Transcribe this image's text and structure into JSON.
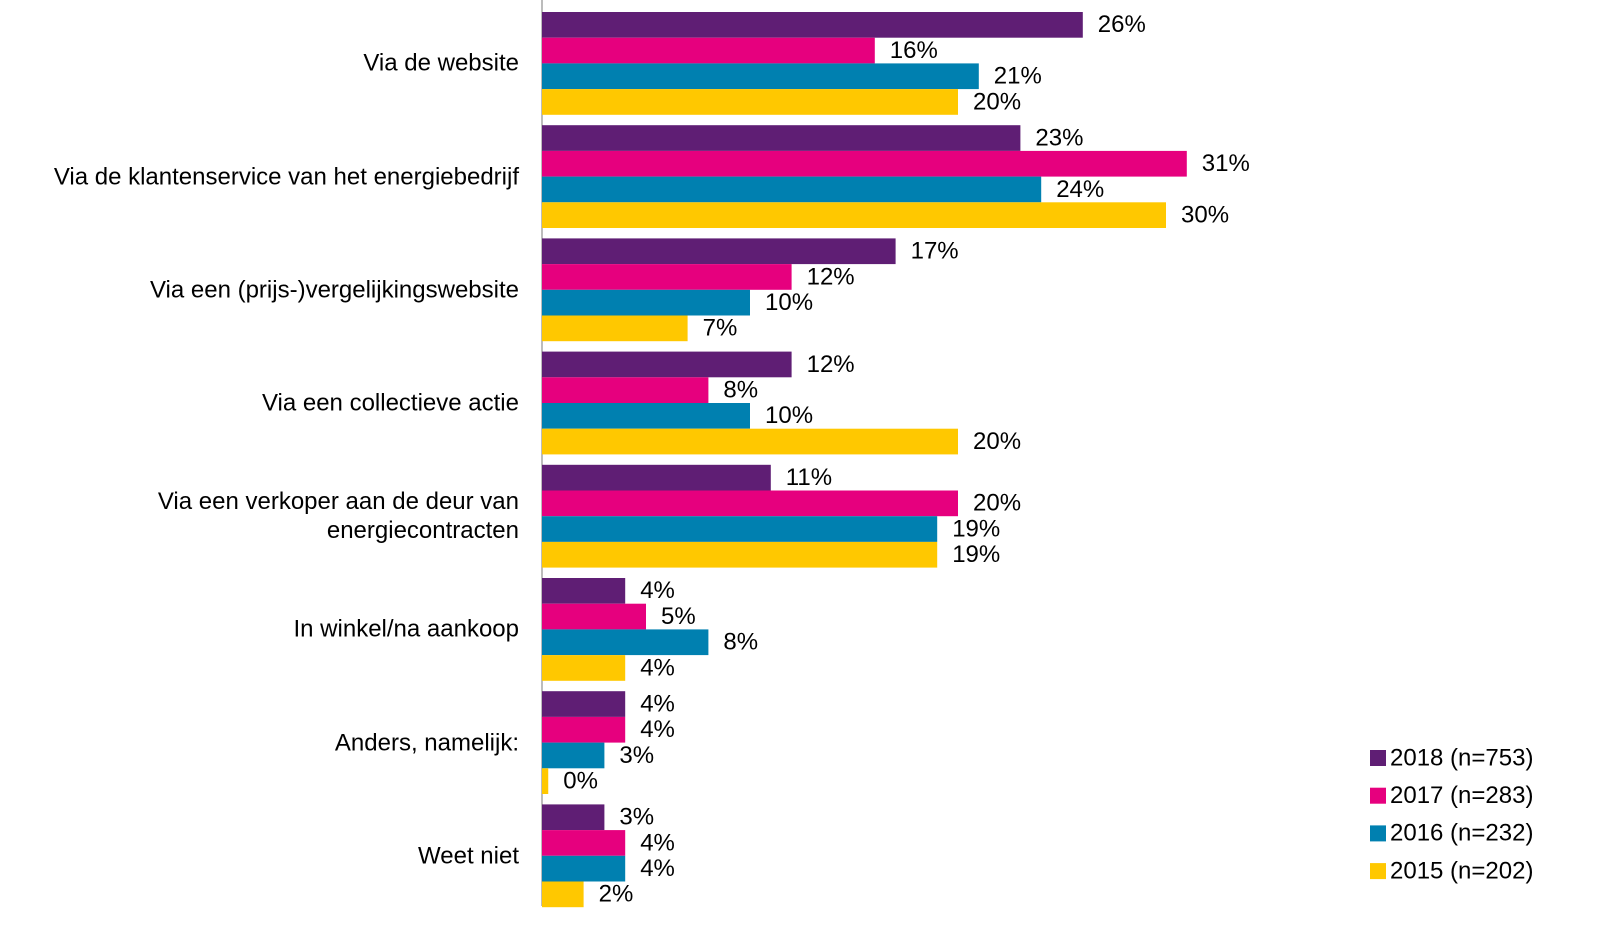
{
  "chart_data": {
    "type": "barh",
    "categories": [
      "Via de website",
      "Via de klantenservice van het energiebedrijf",
      "Via een (prijs-)vergelijkingswebsite",
      "Via een collectieve actie ",
      "Via een verkoper aan de deur van\nenergiecontracten",
      "In winkel/na aankoop",
      "Anders, namelijk:",
      "Weet niet"
    ],
    "series": [
      {
        "name": "2018 (n=753)",
        "color": "#5f1e74",
        "values": [
          26,
          23,
          17,
          12,
          11,
          4,
          4,
          3
        ],
        "value_labels": [
          "26%",
          "23%",
          "17%",
          "12%",
          "11%",
          "4%",
          "4%",
          "3%"
        ]
      },
      {
        "name": "2017 (n=283)",
        "color": "#e6007e",
        "values": [
          16,
          31,
          12,
          8,
          20,
          5,
          4,
          4
        ],
        "value_labels": [
          "16%",
          "31%",
          "12%",
          "8%",
          "20%",
          "5%",
          "4%",
          "4%"
        ]
      },
      {
        "name": "2016 (n=232)",
        "color": "#0080b0",
        "values": [
          21,
          24,
          10,
          10,
          19,
          8,
          3,
          4
        ],
        "value_labels": [
          "21%",
          "24%",
          "10%",
          "10%",
          "19%",
          "8%",
          "3%",
          "4%"
        ]
      },
      {
        "name": "2015 (n=202)",
        "color": "#ffc800",
        "values": [
          20,
          30,
          7,
          20,
          19,
          4,
          0.3,
          2
        ],
        "value_labels": [
          "20%",
          "30%",
          "7%",
          "20%",
          "19%",
          "4%",
          "0%",
          "2%"
        ]
      }
    ],
    "xlim": [
      0,
      35
    ],
    "legend": "bottom-right"
  }
}
